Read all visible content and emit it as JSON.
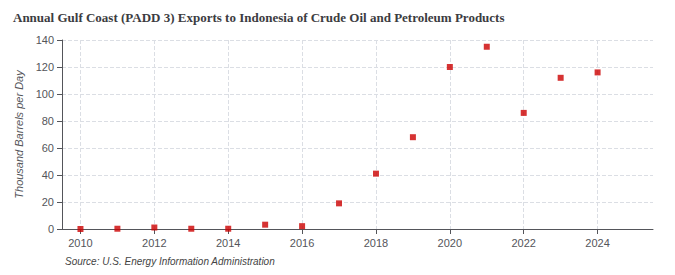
{
  "chart_data": {
    "type": "scatter",
    "title": "Annual Gulf Coast (PADD 3) Exports to Indonesia of Crude Oil and Petroleum Products",
    "ylabel": "Thousand Barrels per Day",
    "source": "Source: U.S. Energy Information Administration",
    "x": [
      2010,
      2011,
      2012,
      2013,
      2014,
      2015,
      2016,
      2017,
      2018,
      2019,
      2020,
      2021,
      2022,
      2023,
      2024
    ],
    "values": [
      0.0,
      0.2,
      1.1,
      0.2,
      0.2,
      3.2,
      2.1,
      19.0,
      41.0,
      68.0,
      120.0,
      135.0,
      86.0,
      112.0,
      116.0
    ],
    "color": "#cc0000",
    "marker": "square",
    "xlim": [
      2009.5,
      2025.5
    ],
    "xticks": [
      2010,
      2012,
      2014,
      2016,
      2018,
      2020,
      2022,
      2024
    ],
    "ylim": [
      0,
      140
    ],
    "yticks": [
      0,
      20,
      40,
      60,
      80,
      100,
      120,
      140
    ],
    "grid": true
  }
}
